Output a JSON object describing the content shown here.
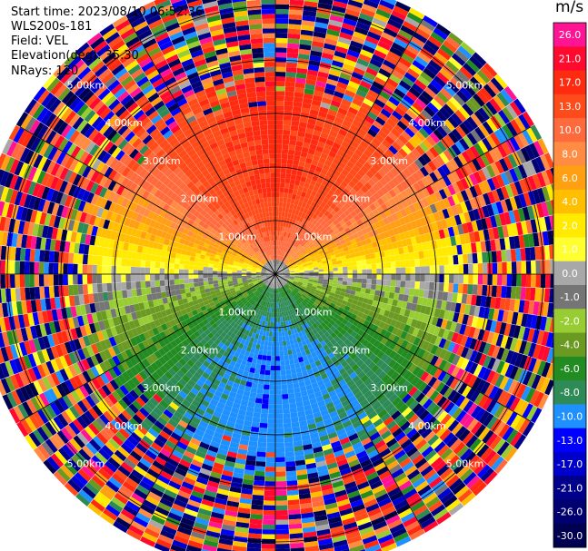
{
  "info": {
    "start_time": "Start time: 2023/08/10 06:52:36",
    "instrument": "WLS200s-181",
    "field": "Field: VEL",
    "elevation": "Elevation(deg): 35.30",
    "nrays": "NRays: 120"
  },
  "chart_data": {
    "type": "heatmap",
    "projection": "polar-ppi",
    "field": "VEL",
    "units": "m/s",
    "nrays": 120,
    "ring_labels": [
      "1.00km",
      "2.00km",
      "3.00km",
      "4.00km",
      "5.00km"
    ],
    "ring_ranges_km": [
      1,
      2,
      3,
      4,
      5
    ],
    "max_range_km": 5.5,
    "spoke_azimuths_deg": [
      0,
      30,
      60,
      90,
      120,
      150,
      180,
      210,
      240,
      270,
      300,
      330
    ],
    "colorbar": {
      "label": "m/s",
      "ticks": [
        "26.0",
        "21.0",
        "17.0",
        "13.0",
        "10.0",
        "8.0",
        "6.0",
        "4.0",
        "2.0",
        "1.0",
        "0.0",
        "-1.0",
        "-2.0",
        "-4.0",
        "-6.0",
        "-8.0",
        "-10.0",
        "-13.0",
        "-17.0",
        "-21.0",
        "-26.0",
        "-30.0"
      ],
      "colors": [
        "#ff1493",
        "#ff0a2e",
        "#ff2b10",
        "#ff4a1a",
        "#ff6a3d",
        "#ff8c42",
        "#ff9f12",
        "#ffbf00",
        "#ffea00",
        "#ffff30",
        "#a8a8a8",
        "#757575",
        "#98cc33",
        "#6b9a22",
        "#228b22",
        "#2e8b57",
        "#1e90ff",
        "#0000ff",
        "#0000cd",
        "#00008b",
        "#000070",
        "#000050"
      ]
    },
    "velocity_field_description_values": {
      "north_peak_mps": 17,
      "south_min_mps": -10,
      "noise_range_km": 3.7
    }
  }
}
